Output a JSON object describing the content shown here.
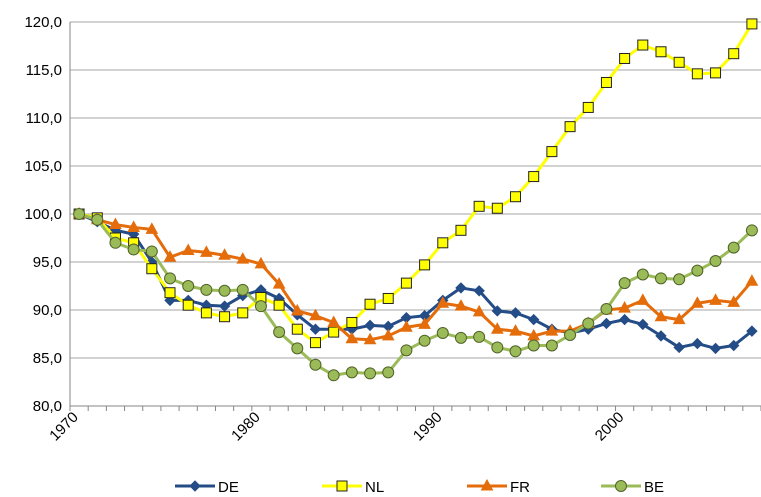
{
  "chart_data": {
    "type": "line",
    "categories": [
      "1970",
      null,
      null,
      null,
      null,
      null,
      null,
      null,
      null,
      null,
      "1980",
      null,
      null,
      null,
      null,
      null,
      null,
      null,
      null,
      null,
      "1990",
      null,
      null,
      null,
      null,
      null,
      null,
      null,
      null,
      null,
      "2000",
      null,
      null,
      null,
      null,
      null,
      null,
      null
    ],
    "ylim": [
      80,
      120
    ],
    "yticks": [
      {
        "value": 80,
        "label": "80,0"
      },
      {
        "value": 85,
        "label": "85,0"
      },
      {
        "value": 90,
        "label": "90,0"
      },
      {
        "value": 95,
        "label": "95,0"
      },
      {
        "value": 100,
        "label": "100,0"
      },
      {
        "value": 105,
        "label": "105,0"
      },
      {
        "value": 110,
        "label": "110,0"
      },
      {
        "value": 115,
        "label": "115,0"
      },
      {
        "value": 120,
        "label": "120,0"
      }
    ],
    "grid": true,
    "legend": "bottom",
    "series": [
      {
        "name": "DE",
        "color": "#244c86",
        "marker": "diamond",
        "values": [
          100,
          99.2,
          98.3,
          97.9,
          95,
          91,
          91,
          90.5,
          90.4,
          91.5,
          92.1,
          91.2,
          89.5,
          88,
          88,
          88,
          88.4,
          88.3,
          89.2,
          89.4,
          91,
          92.3,
          92,
          89.9,
          89.7,
          89,
          88,
          87.6,
          88,
          88.6,
          89,
          88.5,
          87.3,
          86.1,
          86.5,
          86,
          86.3,
          87.8
        ]
      },
      {
        "name": "NL",
        "color": "#ffff00",
        "marker": "square",
        "values": [
          100,
          99.6,
          97.5,
          97,
          94.3,
          91.8,
          90.5,
          89.7,
          89.3,
          89.7,
          91.3,
          90.5,
          88,
          86.6,
          87.7,
          88.7,
          90.6,
          91.2,
          92.8,
          94.7,
          97,
          98.3,
          100.8,
          100.6,
          101.8,
          103.9,
          106.5,
          109.1,
          111.1,
          113.7,
          116.2,
          117.6,
          116.9,
          115.8,
          114.6,
          114.7,
          116.7,
          119.8
        ]
      },
      {
        "name": "FR",
        "color": "#e46c0a",
        "marker": "triangle",
        "values": [
          100,
          99.4,
          98.9,
          98.6,
          98.4,
          95.5,
          96.2,
          96,
          95.7,
          95.3,
          94.8,
          92.7,
          89.9,
          89.4,
          88.7,
          87,
          86.9,
          87.3,
          88.2,
          88.5,
          90.7,
          90.4,
          89.8,
          88,
          87.8,
          87.3,
          87.8,
          87.8,
          88.6,
          90,
          90.2,
          91,
          89.3,
          89,
          90.7,
          91,
          90.8,
          93
        ]
      },
      {
        "name": "BE",
        "color": "#9bbb59",
        "marker": "circle",
        "values": [
          100,
          99.4,
          97,
          96.3,
          96.1,
          93.3,
          92.5,
          92.1,
          92,
          92.1,
          90.4,
          87.7,
          86,
          84.3,
          83.2,
          83.5,
          83.4,
          83.5,
          85.8,
          86.8,
          87.6,
          87.1,
          87.2,
          86.1,
          85.7,
          86.3,
          86.3,
          87.4,
          88.6,
          90.1,
          92.8,
          93.7,
          93.3,
          93.2,
          94.1,
          95.1,
          96.5,
          98.3
        ]
      }
    ]
  }
}
